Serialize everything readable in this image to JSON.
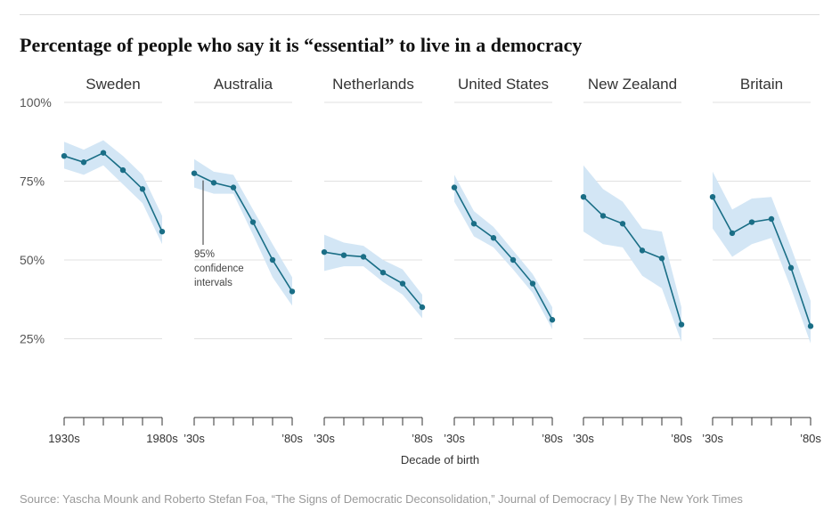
{
  "title": "Percentage of people who say it is “essential” to live in a democracy",
  "source": "Source: Yascha Mounk and Roberto Stefan Foa, “The Signs of Democratic Deconsolidation,” Journal of Democracy | By The New York Times",
  "colors": {
    "line": "#1a6e86",
    "band": "#d3e6f5",
    "grid": "#e0e0e0",
    "axis": "#333333"
  },
  "chart_data": {
    "type": "line",
    "xlabel": "Decade of birth",
    "ylabel": "",
    "ylim": [
      0,
      100
    ],
    "yticks": [
      25,
      50,
      75,
      100
    ],
    "ytick_labels": [
      "25%",
      "50%",
      "75%",
      "100%"
    ],
    "x": [
      1930,
      1940,
      1950,
      1960,
      1970,
      1980
    ],
    "annotation": {
      "panel": "Australia",
      "text": [
        "95%",
        "confidence",
        "intervals"
      ]
    },
    "panels": [
      {
        "name": "Sweden",
        "xtick_labels": [
          "1930s",
          "1980s"
        ],
        "values": [
          83,
          81,
          84,
          78.5,
          72.5,
          59
        ],
        "lower": [
          79,
          77,
          80,
          74,
          68,
          55
        ],
        "upper": [
          87.5,
          85,
          88,
          83,
          77,
          64
        ]
      },
      {
        "name": "Australia",
        "xtick_labels": [
          "’30s",
          "’80s"
        ],
        "values": [
          77.5,
          74.5,
          73,
          62,
          50,
          40
        ],
        "lower": [
          73,
          71,
          71,
          58,
          44.5,
          35.5
        ],
        "upper": [
          82,
          78,
          77,
          66,
          55,
          44.5
        ]
      },
      {
        "name": "Netherlands",
        "xtick_labels": [
          "’30s",
          "’80s"
        ],
        "values": [
          52.5,
          51.5,
          51,
          46,
          42.5,
          35
        ],
        "lower": [
          46.5,
          48,
          48,
          43,
          39,
          31.5
        ],
        "upper": [
          58,
          55.5,
          54.5,
          50,
          47,
          39
        ]
      },
      {
        "name": "United States",
        "xtick_labels": [
          "’30s",
          "’80s"
        ],
        "values": [
          73,
          61.5,
          57,
          50,
          42.5,
          31
        ],
        "lower": [
          68.5,
          57.5,
          54,
          47,
          39.5,
          28
        ],
        "upper": [
          77,
          65.5,
          60.5,
          53,
          45.5,
          35
        ]
      },
      {
        "name": "New Zealand",
        "xtick_labels": [
          "’30s",
          "’80s"
        ],
        "values": [
          70,
          64,
          61.5,
          53,
          50.5,
          29.5
        ],
        "lower": [
          59,
          55,
          54,
          45,
          41,
          24
        ],
        "upper": [
          80,
          72.5,
          68.5,
          60,
          59,
          35
        ]
      },
      {
        "name": "Britain",
        "xtick_labels": [
          "’30s",
          "’80s"
        ],
        "values": [
          70,
          58.5,
          62,
          63,
          47.5,
          29
        ],
        "lower": [
          60,
          51,
          55,
          57,
          41,
          23.5
        ],
        "upper": [
          78,
          66,
          69.5,
          70,
          54,
          37
        ]
      }
    ]
  }
}
